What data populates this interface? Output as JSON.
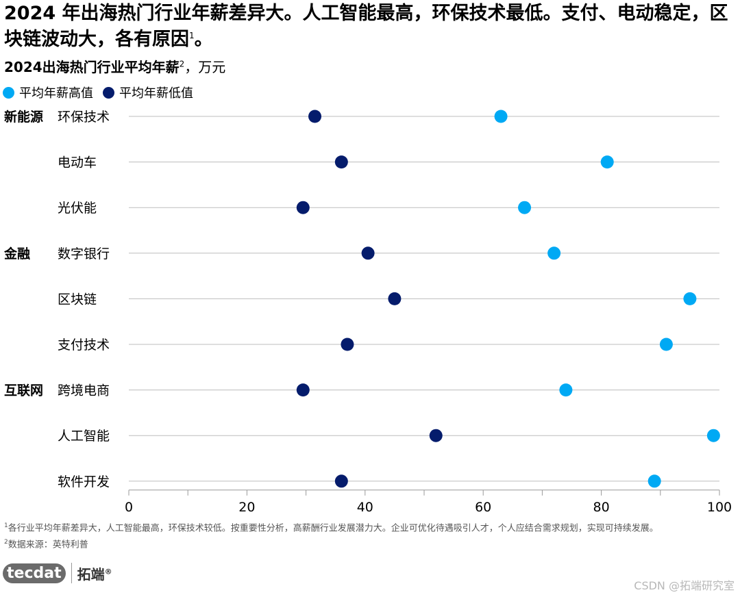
{
  "headline": "2024 年出海热门行业年薪差异大。人工智能最高，环保技术最低。支付、电动稳定，区块链波动大，各有原因",
  "headline_ref": "1",
  "chart_data": {
    "type": "dot",
    "title": "2024出海热门行业平均年薪",
    "title_ref": "2",
    "unit": "，万元",
    "legend_placement": "top-left",
    "series": [
      {
        "name": "平均年薪高值",
        "color": "#00A9F4"
      },
      {
        "name": "平均年薪低值",
        "color": "#051C6C"
      }
    ],
    "xlim": [
      0,
      100
    ],
    "xticks": [
      0,
      20,
      40,
      60,
      80,
      100
    ],
    "grid": true,
    "groups": [
      {
        "name": "新能源",
        "rows": [
          {
            "label": "环保技术",
            "high": 63,
            "low": 31.5
          },
          {
            "label": "电动车",
            "high": 81,
            "low": 36
          },
          {
            "label": "光伏能",
            "high": 67,
            "low": 29.5
          }
        ]
      },
      {
        "name": "金融",
        "rows": [
          {
            "label": "数字银行",
            "high": 72,
            "low": 40.5
          },
          {
            "label": "区块链",
            "high": 95,
            "low": 45
          },
          {
            "label": "支付技术",
            "high": 91,
            "low": 37
          }
        ]
      },
      {
        "name": "互联网",
        "rows": [
          {
            "label": "跨境电商",
            "high": 74,
            "low": 29.5
          },
          {
            "label": "人工智能",
            "high": 99,
            "low": 52
          },
          {
            "label": "软件开发",
            "high": 89,
            "low": 36
          }
        ]
      }
    ]
  },
  "notes": {
    "note1_ref": "1",
    "note1": "各行业平均年薪差异大，人工智能最高，环保技术较低。按重要性分析，高薪酬行业发展潜力大。企业可优化待遇吸引人才，个人应结合需求规划，实现可持续发展。",
    "note2_ref": "2",
    "note2": "数据来源：英特利普"
  },
  "logo": {
    "mark": "tecdat",
    "cn": "拓端",
    "reg": "®"
  },
  "watermark": "CSDN @拓端研究室"
}
